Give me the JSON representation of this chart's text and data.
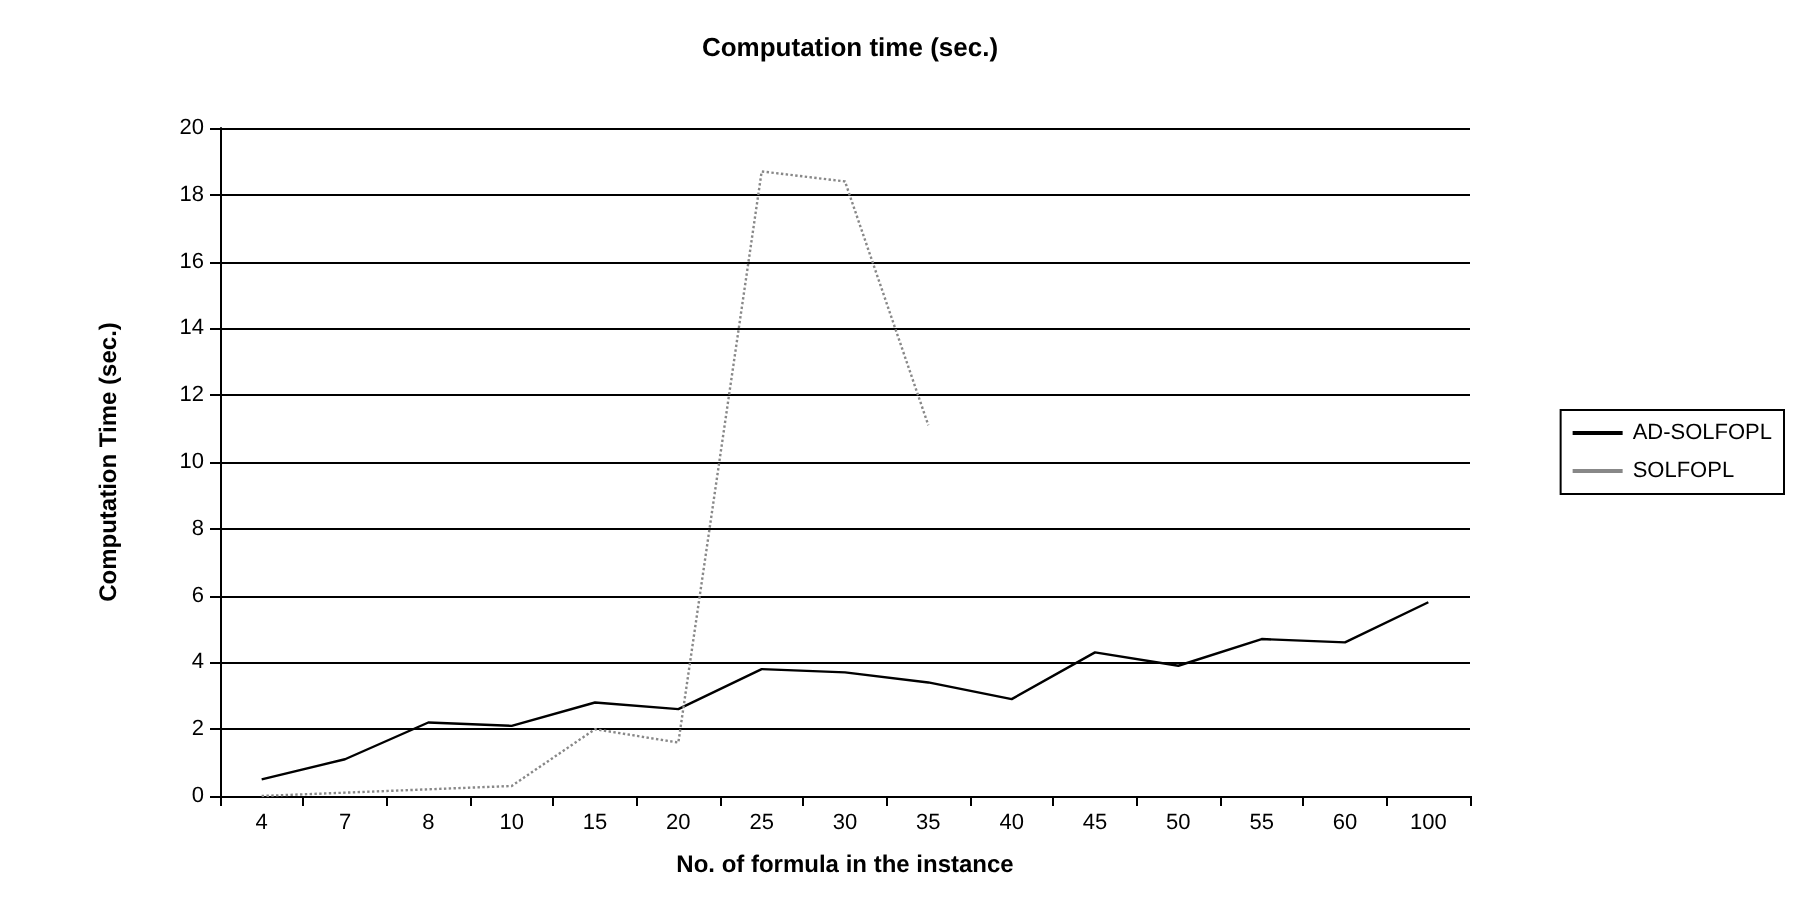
{
  "chart_data": {
    "type": "line",
    "title": "Computation time (sec.)",
    "xlabel": "No. of formula in the instance",
    "ylabel": "Computation Time (sec.)",
    "categories": [
      "4",
      "7",
      "8",
      "10",
      "15",
      "20",
      "25",
      "30",
      "35",
      "40",
      "45",
      "50",
      "55",
      "60",
      "100"
    ],
    "series": [
      {
        "name": "AD-SOLFOPL",
        "color": "#000000",
        "line_style": "solid",
        "values": [
          0.5,
          1.1,
          2.2,
          2.1,
          2.8,
          2.6,
          3.8,
          3.7,
          3.4,
          2.9,
          4.3,
          3.9,
          4.7,
          4.6,
          5.8
        ]
      },
      {
        "name": "SOLFOPL",
        "color": "#888888",
        "line_style": "dotted",
        "values": [
          0,
          0.1,
          0.2,
          0.3,
          2.0,
          1.6,
          18.7,
          18.4,
          11.1,
          null,
          null,
          null,
          null,
          null,
          null
        ]
      }
    ],
    "ylim": [
      0,
      20
    ],
    "yticks": [
      0,
      2,
      4,
      6,
      8,
      10,
      12,
      14,
      16,
      18,
      20
    ],
    "grid": "y",
    "legend": "right",
    "marker": "none"
  }
}
